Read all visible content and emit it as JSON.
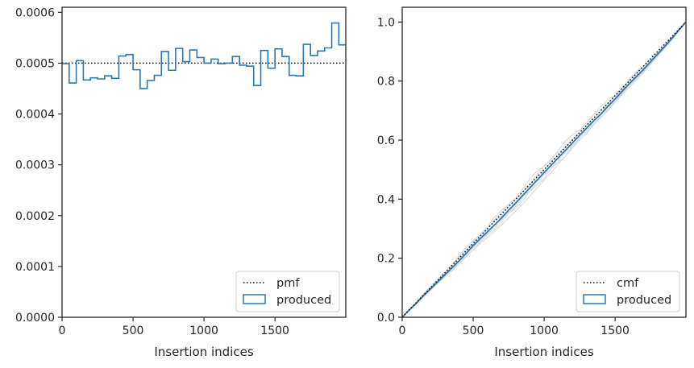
{
  "chart_data": [
    {
      "type": "histogram-step",
      "xlabel": "Insertion indices",
      "ylabel": "",
      "xlim": [
        0,
        1999
      ],
      "ylim": [
        0,
        0.00061
      ],
      "xticks": [
        0,
        500,
        1000,
        1500
      ],
      "xtick_labels": [
        "0",
        "500",
        "1000",
        "1500"
      ],
      "yticks": [
        0,
        0.0001,
        0.0002,
        0.0003,
        0.0004,
        0.0005,
        0.0006
      ],
      "ytick_labels": [
        "0.0000",
        "0.0001",
        "0.0002",
        "0.0003",
        "0.0004",
        "0.0005",
        "0.0006"
      ],
      "legend": {
        "location": "lower right",
        "entries": [
          "pmf",
          "produced"
        ]
      },
      "reference_line": {
        "name": "pmf",
        "style": "dotted",
        "y": 0.0005
      },
      "series": [
        {
          "name": "produced",
          "bin_width": 50,
          "values": [
            0.000499,
            0.000461,
            0.000505,
            0.000467,
            0.000471,
            0.000469,
            0.000475,
            0.00047,
            0.000514,
            0.000517,
            0.000487,
            0.00045,
            0.000466,
            0.000476,
            0.000523,
            0.000486,
            0.000529,
            0.000503,
            0.000526,
            0.000511,
            0.0005,
            0.000508,
            0.000499,
            0.0005,
            0.000513,
            0.000496,
            0.000494,
            0.000456,
            0.000525,
            0.00049,
            0.000528,
            0.000513,
            0.000476,
            0.000475,
            0.000537,
            0.000515,
            0.000524,
            0.00053,
            0.000579,
            0.000536
          ]
        }
      ],
      "colors": {
        "produced": "#2878b5",
        "pmf": "#111111"
      }
    },
    {
      "type": "line",
      "xlabel": "Insertion indices",
      "ylabel": "",
      "xlim": [
        0,
        1999
      ],
      "ylim": [
        0,
        1.05
      ],
      "xticks": [
        0,
        500,
        1000,
        1500
      ],
      "xtick_labels": [
        "0",
        "500",
        "1000",
        "1500"
      ],
      "yticks": [
        0,
        0.2,
        0.4,
        0.6,
        0.8,
        1.0
      ],
      "ytick_labels": [
        "0.0",
        "0.2",
        "0.4",
        "0.6",
        "0.8",
        "1.0"
      ],
      "legend": {
        "location": "lower right",
        "entries": [
          "cmf",
          "produced"
        ]
      },
      "reference_line": {
        "name": "cmf",
        "style": "dotted",
        "from": [
          0,
          0
        ],
        "to": [
          1999,
          1.0
        ]
      },
      "series": [
        {
          "name": "produced",
          "note_source": "cumulative of left histogram"
        }
      ],
      "colors": {
        "produced": "#2878b5",
        "cmf": "#111111",
        "bands": "#d8d8d8"
      }
    }
  ]
}
